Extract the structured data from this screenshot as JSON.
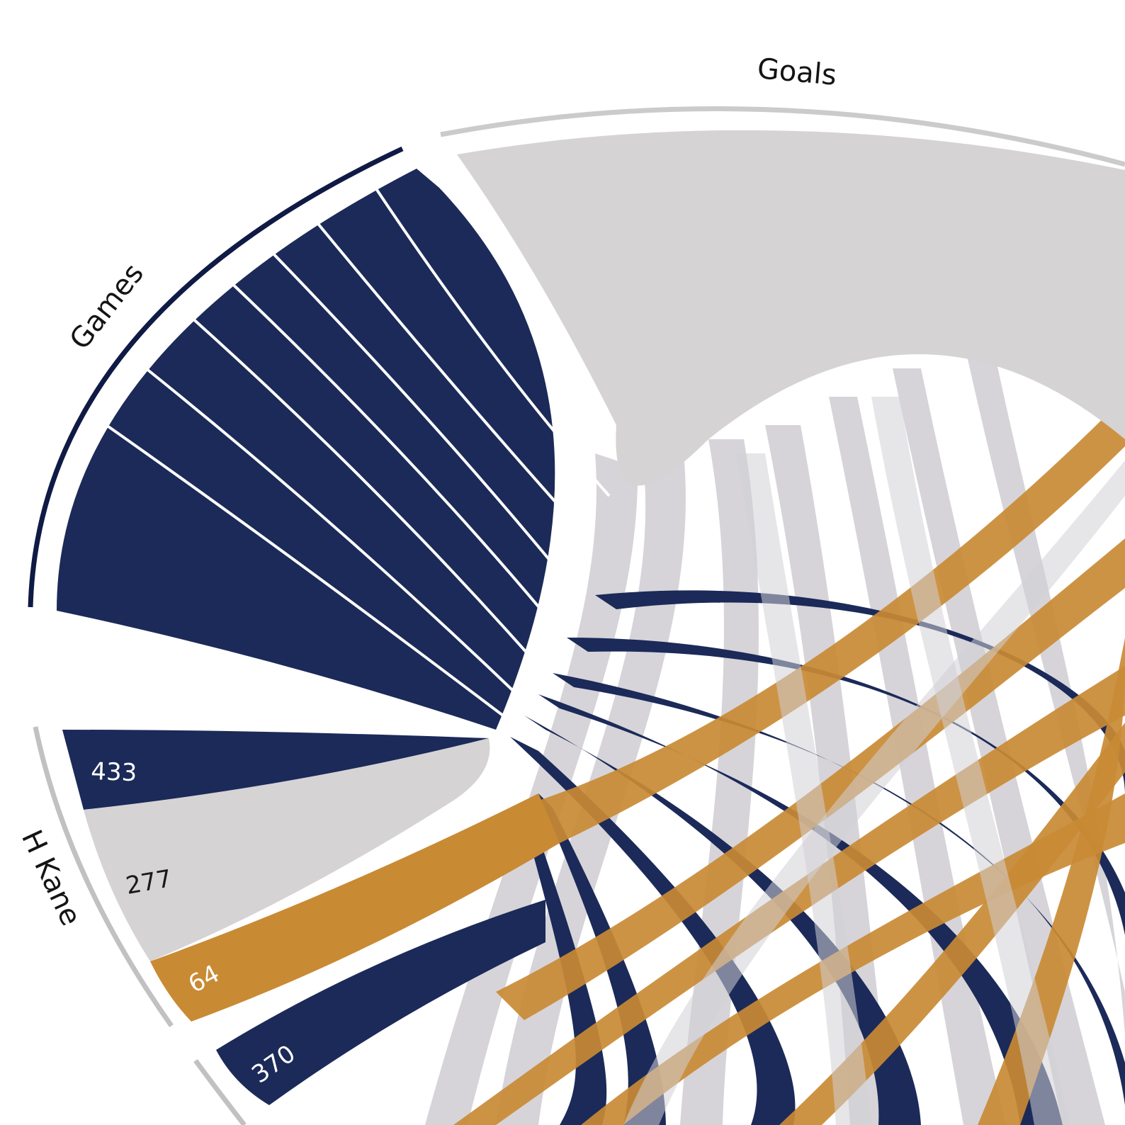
{
  "chart_data": {
    "type": "chord",
    "groups": [
      {
        "name": "Games",
        "color": "#1b2a58"
      },
      {
        "name": "Goals",
        "color": "#d5d3d4"
      },
      {
        "name": "H Kane",
        "color": "#c1c1c1"
      }
    ],
    "series_colors": {
      "games": "#1b2a58",
      "goals": "#d5d3d4",
      "assists": "#c98a34"
    },
    "player_segments": [
      {
        "player": "H Kane",
        "metric": "games",
        "value": 433
      },
      {
        "player": "H Kane",
        "metric": "goals",
        "value": 277
      },
      {
        "player": "H Kane",
        "metric": "assists",
        "value": 64
      },
      {
        "player": "",
        "metric": "games",
        "value": 370
      }
    ]
  }
}
